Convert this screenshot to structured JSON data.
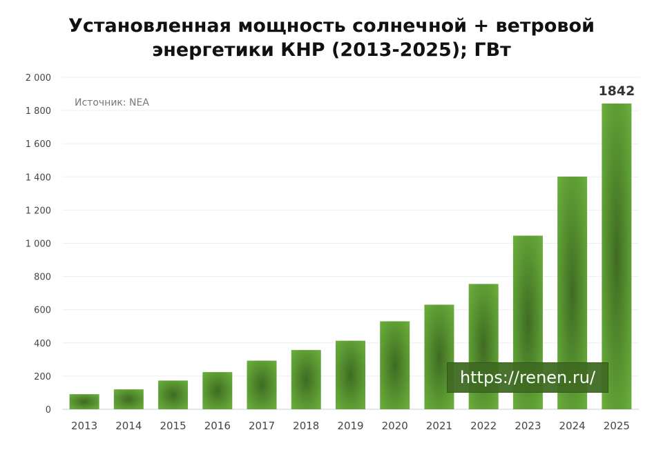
{
  "chart_data": {
    "type": "bar",
    "title_line1": "Установленная мощность солнечной + ветровой",
    "title_line2": "энергетики КНР (2013-2025); ГВт",
    "source": "Источник: NEA",
    "watermark": "https://renen.ru/",
    "categories": [
      "2013",
      "2014",
      "2015",
      "2016",
      "2017",
      "2018",
      "2019",
      "2020",
      "2021",
      "2022",
      "2023",
      "2024",
      "2025"
    ],
    "values": [
      91,
      120,
      173,
      224,
      293,
      357,
      413,
      530,
      630,
      755,
      1046,
      1402,
      1842
    ],
    "data_labels": [
      {
        "category": "2025",
        "text": "1842"
      }
    ],
    "ylim": [
      0,
      2000
    ],
    "yticks": [
      0,
      200,
      400,
      600,
      800,
      1000,
      1200,
      1400,
      1600,
      1800,
      2000
    ],
    "ytick_labels": [
      "0",
      "200",
      "400",
      "600",
      "800",
      "1 000",
      "1 200",
      "1 400",
      "1 600",
      "1 800",
      "2 000"
    ],
    "grid": true,
    "colors": {
      "bar_light": "#6db33f",
      "bar_dark": "#3f6b22",
      "grid": "#eeeeee"
    }
  }
}
